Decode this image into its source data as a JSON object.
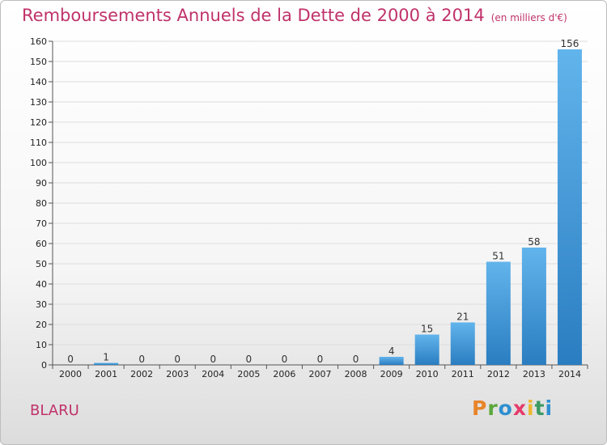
{
  "header": {
    "title": "Remboursements Annuels de la Dette de 2000 à 2014",
    "unit": "(en milliers d'€)"
  },
  "footer": {
    "commune": "BLARU",
    "logo": "Proxiti"
  },
  "colors": {
    "title": "#c0326a",
    "bar_light": "#62b4ec",
    "bar_dark": "#2a7dc0",
    "grid": "#dddddd",
    "logo_letters": [
      "#e8842a",
      "#5aa83c",
      "#2f8fd0",
      "#e53b6a",
      "#f0b72f",
      "#3c9a62",
      "#2f8fd0"
    ]
  },
  "chart_data": {
    "type": "bar",
    "title": "Remboursements Annuels de la Dette de 2000 à 2014",
    "xlabel": "",
    "ylabel": "",
    "categories": [
      "2000",
      "2001",
      "2002",
      "2003",
      "2004",
      "2005",
      "2006",
      "2007",
      "2008",
      "2009",
      "2010",
      "2011",
      "2012",
      "2013",
      "2014"
    ],
    "values": [
      0,
      1,
      0,
      0,
      0,
      0,
      0,
      0,
      0,
      4,
      15,
      21,
      51,
      58,
      156
    ],
    "ylim": [
      0,
      160
    ],
    "yticks": [
      0,
      10,
      20,
      30,
      40,
      50,
      60,
      70,
      80,
      90,
      100,
      110,
      120,
      130,
      140,
      150,
      160
    ],
    "grid": true,
    "legend": "none"
  }
}
